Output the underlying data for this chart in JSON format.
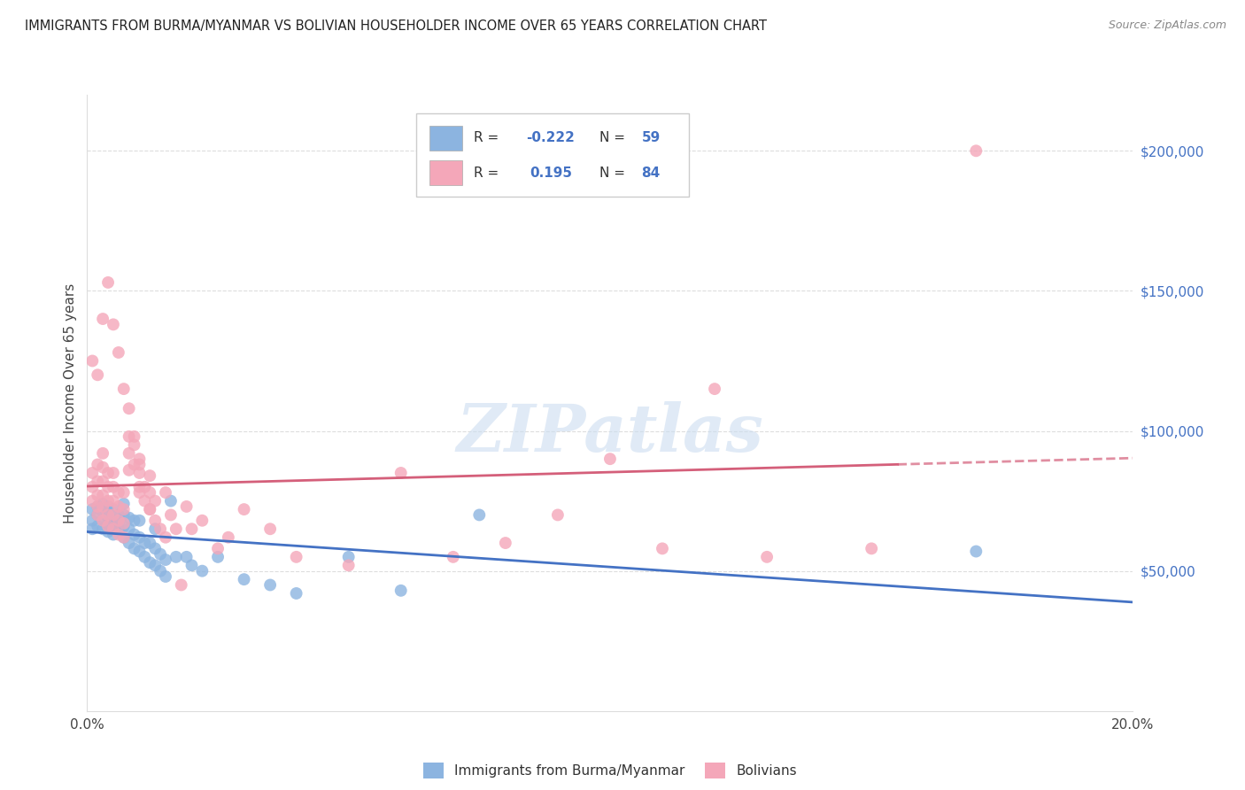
{
  "title": "IMMIGRANTS FROM BURMA/MYANMAR VS BOLIVIAN HOUSEHOLDER INCOME OVER 65 YEARS CORRELATION CHART",
  "source": "Source: ZipAtlas.com",
  "ylabel": "Householder Income Over 65 years",
  "right_ytick_labels": [
    "$50,000",
    "$100,000",
    "$150,000",
    "$200,000"
  ],
  "right_ytick_values": [
    50000,
    100000,
    150000,
    200000
  ],
  "ylim": [
    0,
    220000
  ],
  "xlim": [
    0.0,
    0.2
  ],
  "watermark": "ZIPatlas",
  "legend_blue_R": "-0.222",
  "legend_blue_N": "59",
  "legend_pink_R": "0.195",
  "legend_pink_N": "84",
  "blue_color": "#8cb4e0",
  "pink_color": "#f4a7b9",
  "blue_line_color": "#4472c4",
  "pink_line_color": "#d45f7a",
  "blue_scatter_x": [
    0.001,
    0.001,
    0.001,
    0.002,
    0.002,
    0.002,
    0.003,
    0.003,
    0.003,
    0.003,
    0.004,
    0.004,
    0.004,
    0.004,
    0.004,
    0.005,
    0.005,
    0.005,
    0.005,
    0.006,
    0.006,
    0.006,
    0.007,
    0.007,
    0.007,
    0.007,
    0.008,
    0.008,
    0.008,
    0.009,
    0.009,
    0.009,
    0.01,
    0.01,
    0.01,
    0.011,
    0.011,
    0.012,
    0.012,
    0.013,
    0.013,
    0.013,
    0.014,
    0.014,
    0.015,
    0.015,
    0.016,
    0.017,
    0.019,
    0.02,
    0.022,
    0.025,
    0.03,
    0.035,
    0.04,
    0.05,
    0.06,
    0.075,
    0.17
  ],
  "blue_scatter_y": [
    68000,
    72000,
    65000,
    70000,
    66000,
    73000,
    68000,
    71000,
    65000,
    74000,
    64000,
    69000,
    73000,
    67000,
    71000,
    63000,
    68000,
    72000,
    66000,
    65000,
    70000,
    67000,
    62000,
    66000,
    70000,
    74000,
    60000,
    65000,
    69000,
    58000,
    63000,
    68000,
    57000,
    62000,
    68000,
    55000,
    60000,
    53000,
    60000,
    52000,
    58000,
    65000,
    50000,
    56000,
    48000,
    54000,
    75000,
    55000,
    55000,
    52000,
    50000,
    55000,
    47000,
    45000,
    42000,
    55000,
    43000,
    70000,
    57000
  ],
  "pink_scatter_x": [
    0.001,
    0.001,
    0.001,
    0.002,
    0.002,
    0.002,
    0.002,
    0.002,
    0.003,
    0.003,
    0.003,
    0.003,
    0.003,
    0.003,
    0.004,
    0.004,
    0.004,
    0.004,
    0.004,
    0.005,
    0.005,
    0.005,
    0.005,
    0.005,
    0.006,
    0.006,
    0.006,
    0.006,
    0.007,
    0.007,
    0.007,
    0.007,
    0.008,
    0.008,
    0.008,
    0.009,
    0.009,
    0.01,
    0.01,
    0.01,
    0.01,
    0.011,
    0.011,
    0.012,
    0.012,
    0.012,
    0.013,
    0.013,
    0.014,
    0.015,
    0.016,
    0.017,
    0.019,
    0.02,
    0.022,
    0.025,
    0.027,
    0.03,
    0.035,
    0.04,
    0.05,
    0.06,
    0.07,
    0.08,
    0.09,
    0.1,
    0.11,
    0.12,
    0.13,
    0.15,
    0.001,
    0.002,
    0.003,
    0.004,
    0.005,
    0.006,
    0.007,
    0.008,
    0.009,
    0.01,
    0.012,
    0.015,
    0.018,
    0.17
  ],
  "pink_scatter_y": [
    75000,
    80000,
    85000,
    70000,
    73000,
    77000,
    82000,
    88000,
    68000,
    73000,
    77000,
    82000,
    87000,
    92000,
    66000,
    70000,
    75000,
    80000,
    85000,
    65000,
    70000,
    75000,
    80000,
    85000,
    63000,
    68000,
    73000,
    78000,
    62000,
    67000,
    72000,
    78000,
    98000,
    92000,
    86000,
    88000,
    95000,
    80000,
    85000,
    90000,
    78000,
    75000,
    80000,
    72000,
    78000,
    84000,
    68000,
    75000,
    65000,
    78000,
    70000,
    65000,
    73000,
    65000,
    68000,
    58000,
    62000,
    72000,
    65000,
    55000,
    52000,
    85000,
    55000,
    60000,
    70000,
    90000,
    58000,
    115000,
    55000,
    58000,
    125000,
    120000,
    140000,
    153000,
    138000,
    128000,
    115000,
    108000,
    98000,
    88000,
    72000,
    62000,
    45000,
    200000
  ]
}
